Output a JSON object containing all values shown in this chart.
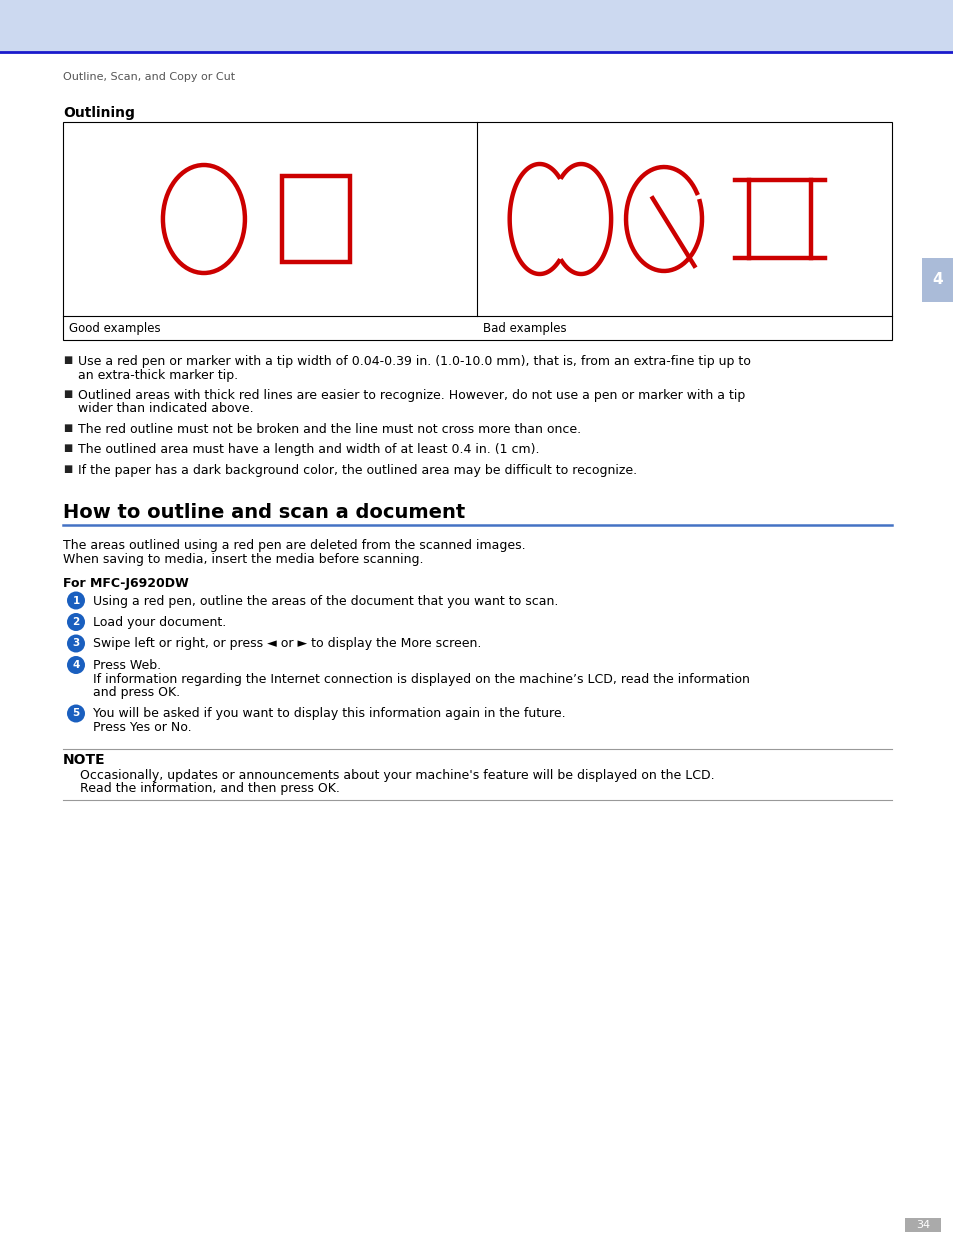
{
  "header_bg_color": "#ccd9f0",
  "header_blue_line_color": "#1a1acc",
  "breadcrumb_text": "Outline, Scan, and Copy or Cut",
  "breadcrumb_fontsize": 8,
  "breadcrumb_color": "#555555",
  "section1_title": "Outlining",
  "section1_title_fontsize": 10,
  "table_good_label": "Good examples",
  "table_bad_label": "Bad examples",
  "section2_title": "How to outline and scan a document",
  "section2_title_fontsize": 14,
  "section2_line_color": "#4472c4",
  "body_text_color": "#000000",
  "body_fontsize": 9,
  "bullet_char": "■",
  "bullets": [
    [
      "Use a red pen or marker with a tip width of 0.04-0.39 in. (1.0-10.0 mm), that is, from an extra-fine tip up to",
      "an extra-thick marker tip."
    ],
    [
      "Outlined areas with thick red lines are easier to recognize. However, do not use a pen or marker with a tip",
      "wider than indicated above."
    ],
    [
      "The red outline must not be broken and the line must not cross more than once."
    ],
    [
      "The outlined area must have a length and width of at least 0.4 in. (1 cm)."
    ],
    [
      "If the paper has a dark background color, the outlined area may be difficult to recognize."
    ]
  ],
  "intro_lines": [
    "The areas outlined using a red pen are deleted from the scanned images.",
    "When saving to media, insert the media before scanning."
  ],
  "for_label": "For MFC-J6920DW",
  "for_label_fontsize": 9,
  "steps": [
    [
      "Using a red pen, outline the areas of the document that you want to scan."
    ],
    [
      "Load your document."
    ],
    [
      "Swipe left or right, or press ◄ or ► to display the ",
      "More",
      " screen."
    ],
    [
      "Press ",
      "Web.",
      "\nIf information regarding the Internet connection is displayed on the machine’s LCD, read the information\nand press ",
      "OK",
      "."
    ],
    [
      "You will be asked if you want to display this information again in the future.\nPress ",
      "Yes",
      " or ",
      "No",
      "."
    ]
  ],
  "note_title": "NOTE",
  "note_text_lines": [
    [
      "Occasionally, updates or announcements about your machine's feature will be displayed on the LCD."
    ],
    [
      "Read the information, and then press ",
      "OK",
      "."
    ]
  ],
  "page_number": "34",
  "tab_label": "4",
  "tab_color": "#aabbd8",
  "tab_text_color": "#ffffff",
  "red_color": "#cc0000",
  "blue_step_color": "#1a5fbf",
  "step_number_text_color": "#ffffff",
  "code_text_color": "#777777",
  "page_bg": "#ffffff",
  "line_color": "#888888"
}
